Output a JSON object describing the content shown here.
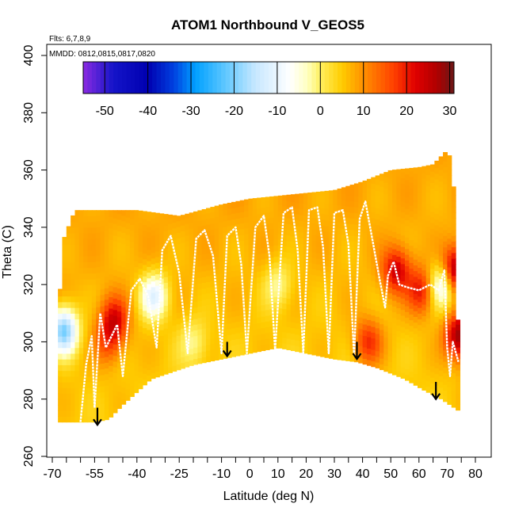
{
  "chart_data": {
    "type": "heatmap",
    "title": "ATOM1 Northbound V_GEOS5",
    "annotations": {
      "flights": "Flts: 6,7,8,9",
      "dates": "MMDD: 0812,0815,0817,0820"
    },
    "xlabel": "Latitude (deg N)",
    "ylabel": "Theta (C)",
    "xlim": [
      -70,
      80
    ],
    "ylim": [
      260,
      400
    ],
    "xticks": [
      -70,
      -55,
      -40,
      -25,
      -10,
      0,
      10,
      20,
      30,
      40,
      50,
      60,
      70,
      80
    ],
    "xticks_minor_step": 5,
    "yticks": [
      260,
      280,
      300,
      320,
      340,
      360,
      380,
      400
    ],
    "colorbar": {
      "range": [
        -55,
        31
      ],
      "ticks": [
        -50,
        -40,
        -30,
        -20,
        -10,
        0,
        10,
        20,
        30
      ],
      "colors": [
        {
          "v": -55,
          "c": "#8a2be2"
        },
        {
          "v": -48,
          "c": "#1414c8"
        },
        {
          "v": -40,
          "c": "#0000b0"
        },
        {
          "v": -34,
          "c": "#0040e0"
        },
        {
          "v": -29,
          "c": "#00a0ff"
        },
        {
          "v": -22,
          "c": "#60c8ff"
        },
        {
          "v": -15,
          "c": "#c8e8ff"
        },
        {
          "v": -7,
          "c": "#ffffff"
        },
        {
          "v": -3,
          "c": "#ffffc0"
        },
        {
          "v": 0,
          "c": "#fff060"
        },
        {
          "v": 5,
          "c": "#ffcc00"
        },
        {
          "v": 10,
          "c": "#ff9000"
        },
        {
          "v": 17,
          "c": "#ff4000"
        },
        {
          "v": 22,
          "c": "#e00000"
        },
        {
          "v": 27,
          "c": "#b00000"
        },
        {
          "v": 31,
          "c": "#6a1818"
        }
      ]
    },
    "field_top": [
      [
        -68,
        308
      ],
      [
        -66,
        336
      ],
      [
        -62,
        346
      ],
      [
        -50,
        346
      ],
      [
        -40,
        346
      ],
      [
        -25,
        344
      ],
      [
        -10,
        348
      ],
      [
        0,
        350
      ],
      [
        10,
        351
      ],
      [
        20,
        352
      ],
      [
        30,
        353
      ],
      [
        40,
        356
      ],
      [
        50,
        360
      ],
      [
        60,
        361
      ],
      [
        65,
        362
      ],
      [
        70,
        367
      ],
      [
        72,
        362
      ],
      [
        74,
        300
      ]
    ],
    "field_bottom": [
      [
        -68,
        272
      ],
      [
        -60,
        272
      ],
      [
        -55,
        272
      ],
      [
        -50,
        273
      ],
      [
        -45,
        278
      ],
      [
        -35,
        287
      ],
      [
        -20,
        292
      ],
      [
        -10,
        294
      ],
      [
        0,
        296
      ],
      [
        10,
        298
      ],
      [
        20,
        296
      ],
      [
        30,
        294
      ],
      [
        38,
        293
      ],
      [
        45,
        291
      ],
      [
        55,
        287
      ],
      [
        62,
        283
      ],
      [
        68,
        280
      ],
      [
        74,
        276
      ]
    ],
    "hotspots": [
      {
        "x": 52,
        "y": 325,
        "v": 22
      },
      {
        "x": 61,
        "y": 318,
        "v": 20
      },
      {
        "x": 42,
        "y": 300,
        "v": 18
      },
      {
        "x": 73,
        "y": 325,
        "v": 28
      },
      {
        "x": 74,
        "y": 302,
        "v": 26
      },
      {
        "x": -48,
        "y": 308,
        "v": 20
      },
      {
        "x": -50,
        "y": 300,
        "v": 14
      },
      {
        "x": -34,
        "y": 316,
        "v": -12
      },
      {
        "x": -66,
        "y": 304,
        "v": -22
      },
      {
        "x": 68,
        "y": 320,
        "v": -13
      },
      {
        "x": 10,
        "y": 320,
        "v": -3
      },
      {
        "x": -20,
        "y": 300,
        "v": -2
      }
    ],
    "flight_track": [
      [
        -60,
        272
      ],
      [
        -58,
        292
      ],
      [
        -56,
        302
      ],
      [
        -55,
        277
      ],
      [
        -53,
        310
      ],
      [
        -51,
        298
      ],
      [
        -47,
        306
      ],
      [
        -45,
        288
      ],
      [
        -42,
        318
      ],
      [
        -39,
        322
      ],
      [
        -36,
        316
      ],
      [
        -33,
        298
      ],
      [
        -31,
        332
      ],
      [
        -28,
        337
      ],
      [
        -25,
        324
      ],
      [
        -22,
        296
      ],
      [
        -19,
        336
      ],
      [
        -16,
        339
      ],
      [
        -13,
        330
      ],
      [
        -10,
        296
      ],
      [
        -8,
        337
      ],
      [
        -5,
        340
      ],
      [
        -3,
        327
      ],
      [
        -1,
        296
      ],
      [
        2,
        340
      ],
      [
        5,
        344
      ],
      [
        7,
        330
      ],
      [
        9,
        297
      ],
      [
        12,
        345
      ],
      [
        15,
        347
      ],
      [
        17,
        332
      ],
      [
        19,
        296
      ],
      [
        21,
        346
      ],
      [
        24,
        347
      ],
      [
        26,
        333
      ],
      [
        28,
        296
      ],
      [
        30,
        345
      ],
      [
        33,
        346
      ],
      [
        35,
        334
      ],
      [
        37,
        295
      ],
      [
        39,
        343
      ],
      [
        41,
        349
      ],
      [
        44,
        333
      ],
      [
        46,
        322
      ],
      [
        48,
        312
      ],
      [
        49,
        323
      ],
      [
        51,
        328
      ],
      [
        53,
        320
      ],
      [
        56,
        319
      ],
      [
        60,
        318
      ],
      [
        64,
        320
      ],
      [
        67,
        318
      ],
      [
        69,
        325
      ],
      [
        70,
        298
      ],
      [
        71,
        288
      ],
      [
        72,
        300
      ],
      [
        74,
        293
      ]
    ],
    "arrows": [
      {
        "x": -54,
        "y_top": 277,
        "y_tip": 271
      },
      {
        "x": -8,
        "y_top": 300,
        "y_tip": 295
      },
      {
        "x": 38,
        "y_top": 300,
        "y_tip": 294
      },
      {
        "x": 66,
        "y_top": 286,
        "y_tip": 280
      }
    ]
  }
}
